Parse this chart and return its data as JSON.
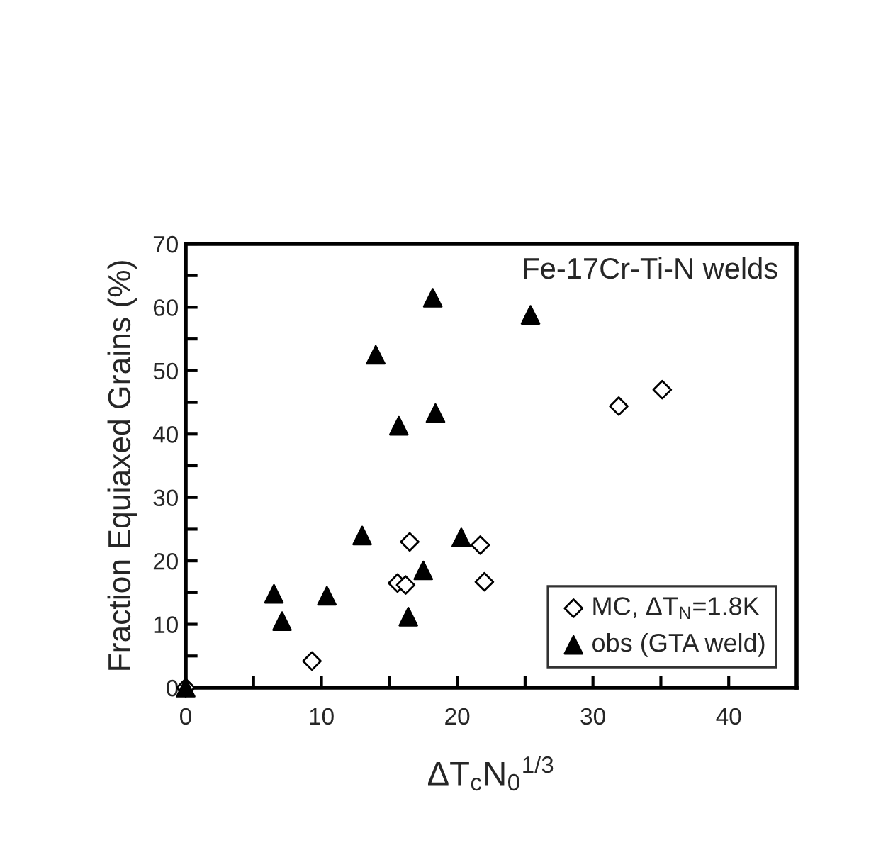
{
  "chart_data": {
    "type": "scatter",
    "xlabel": "ΔT$_{c}$N$_{0}$$^{1/3}$",
    "ylabel": "Fraction Equiaxed Grains (%)",
    "annotations": [
      "Fe-17Cr-Ti-N welds"
    ],
    "xlim": [
      0,
      45
    ],
    "xticks": [
      0,
      {
        "value": 5,
        "label": null
      },
      10,
      {
        "value": 15,
        "label": null
      },
      20,
      {
        "value": 25,
        "label": null
      },
      30,
      {
        "value": 35,
        "label": null
      },
      40
    ],
    "ylim": [
      0,
      70
    ],
    "yticks": [
      0,
      {
        "value": 5,
        "label": null
      },
      10,
      {
        "value": 15,
        "label": null
      },
      20,
      {
        "value": 25,
        "label": null
      },
      30,
      {
        "value": 35,
        "label": null
      },
      40,
      {
        "value": 45,
        "label": null
      },
      50,
      {
        "value": 55,
        "label": null
      },
      60,
      {
        "value": 65,
        "label": null
      },
      70
    ],
    "grid": false,
    "legend": "bottom right",
    "series": [
      {
        "name": "MC, ΔT$_{N}$=1.8K",
        "color": "#ffffff",
        "marker": "diamond",
        "x": [
          0,
          9.3,
          15.6,
          16.2,
          16.5,
          21.7,
          22,
          31.9,
          35.1
        ],
        "values": [
          0,
          4.2,
          16.5,
          16.2,
          23,
          22.5,
          16.7,
          44.4,
          47
        ]
      },
      {
        "name": "obs (GTA weld)",
        "color": "#000000",
        "marker": "triangle",
        "x": [
          0,
          6.5,
          7.1,
          10.4,
          13,
          14,
          15.7,
          16.4,
          17.5,
          18.2,
          18.4,
          20.3,
          25.4
        ],
        "values": [
          0,
          14.8,
          10.5,
          14.5,
          24,
          52.5,
          41.3,
          11.2,
          18.5,
          61.5,
          43.3,
          23.7,
          58.8
        ]
      }
    ]
  }
}
